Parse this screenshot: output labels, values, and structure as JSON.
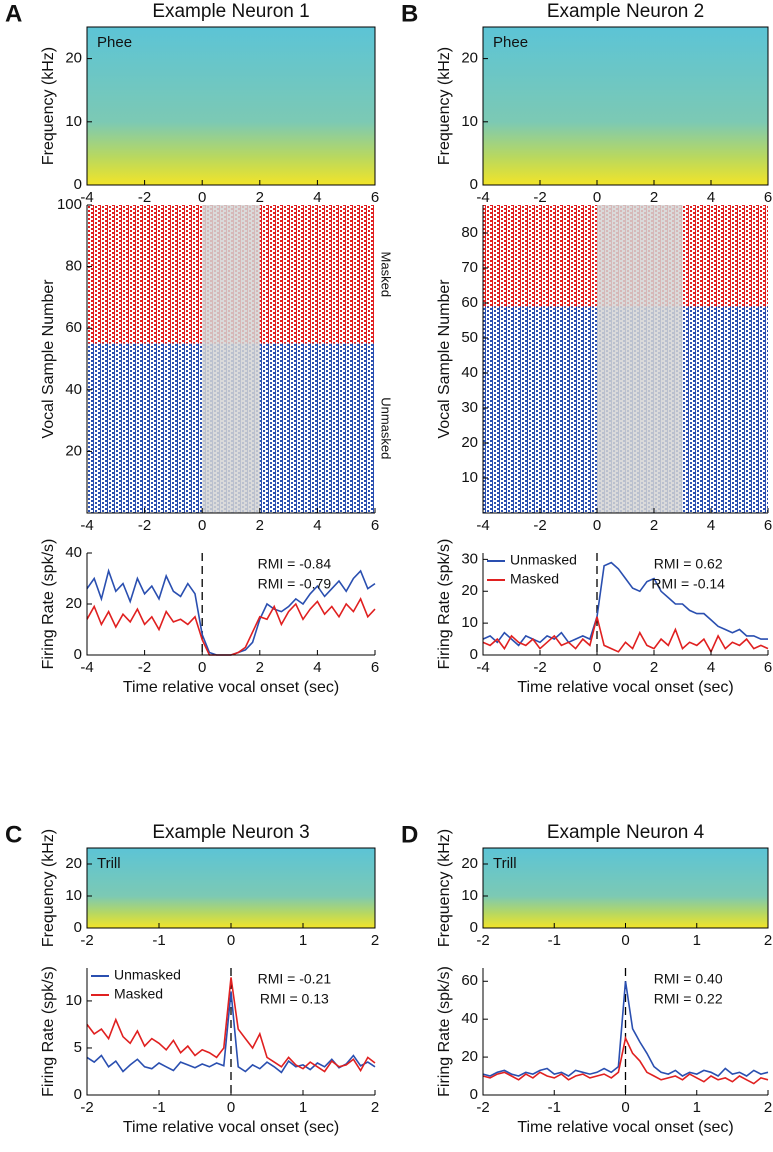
{
  "chart_data": [
    {
      "type": "spectrogram",
      "panel_label": "A",
      "title": "Example Neuron 1",
      "label": "Phee",
      "ylabel": "Frequency (kHz)",
      "xlim": [
        -4,
        6
      ],
      "xticks": [
        -4,
        -2,
        0,
        2,
        4,
        6
      ],
      "ylim": [
        0,
        25
      ],
      "yticks": [
        0,
        10,
        20
      ]
    },
    {
      "type": "raster",
      "ylabel": "Vocal Sample Number",
      "xlim": [
        -4,
        6
      ],
      "xticks": [
        -4,
        -2,
        0,
        2,
        4,
        6
      ],
      "ylim": [
        0,
        100
      ],
      "yticks": [
        20,
        40,
        60,
        80,
        100
      ],
      "vocal_period": [
        0,
        2
      ],
      "series": [
        {
          "name": "Masked",
          "color": "#e02020",
          "rows": [
            55,
            100
          ]
        },
        {
          "name": "Unmasked",
          "color": "#2a4fb0",
          "rows": [
            0,
            55
          ]
        }
      ]
    },
    {
      "type": "line",
      "ylabel": "Firing Rate (spk/s)",
      "xlabel": "Time relative vocal onset (sec)",
      "xlim": [
        -4,
        6
      ],
      "xticks": [
        -4,
        -2,
        0,
        2,
        4,
        6
      ],
      "ylim": [
        0,
        40
      ],
      "yticks": [
        0,
        20,
        40
      ],
      "vline": 0,
      "x": [
        -4,
        -3.75,
        -3.5,
        -3.25,
        -3,
        -2.75,
        -2.5,
        -2.25,
        -2,
        -1.75,
        -1.5,
        -1.25,
        -1,
        -0.75,
        -0.5,
        -0.25,
        0,
        0.25,
        0.5,
        0.75,
        1,
        1.25,
        1.5,
        1.75,
        2,
        2.25,
        2.5,
        2.75,
        3,
        3.25,
        3.5,
        3.75,
        4,
        4.25,
        4.5,
        4.75,
        5,
        5.25,
        5.5,
        5.75,
        6
      ],
      "series": [
        {
          "label": "RMI = -0.84",
          "color": "#2a4fb0",
          "values": [
            26,
            30,
            22,
            33,
            25,
            28,
            21,
            30,
            24,
            27,
            22,
            31,
            25,
            23,
            28,
            24,
            8,
            1,
            0,
            0,
            0,
            1,
            2,
            5,
            14,
            20,
            18,
            17,
            19,
            22,
            20,
            24,
            27,
            23,
            26,
            29,
            25,
            30,
            33,
            26,
            28
          ]
        },
        {
          "label": "RMI = -0.79",
          "color": "#e02020",
          "values": [
            14,
            19,
            12,
            17,
            11,
            16,
            13,
            18,
            12,
            15,
            10,
            17,
            13,
            14,
            12,
            15,
            6,
            0,
            0,
            0,
            0,
            1,
            3,
            9,
            15,
            14,
            19,
            12,
            17,
            20,
            14,
            18,
            21,
            16,
            19,
            15,
            20,
            17,
            22,
            15,
            18
          ]
        }
      ]
    },
    {
      "type": "spectrogram",
      "panel_label": "B",
      "title": "Example Neuron 2",
      "label": "Phee",
      "ylabel": "Frequency (kHz)",
      "xlim": [
        -4,
        6
      ],
      "xticks": [
        -4,
        -2,
        0,
        2,
        4,
        6
      ],
      "ylim": [
        0,
        25
      ],
      "yticks": [
        0,
        10,
        20
      ]
    },
    {
      "type": "raster",
      "ylabel": "Vocal Sample Number",
      "xlim": [
        -4,
        6
      ],
      "xticks": [
        -4,
        -2,
        0,
        2,
        4,
        6
      ],
      "ylim": [
        0,
        88
      ],
      "yticks": [
        10,
        20,
        30,
        40,
        50,
        60,
        70,
        80
      ],
      "vocal_period": [
        0,
        3
      ],
      "series": [
        {
          "color": "#e02020",
          "rows": [
            59,
            88
          ]
        },
        {
          "color": "#2a4fb0",
          "rows": [
            0,
            59
          ]
        }
      ]
    },
    {
      "type": "line",
      "ylabel": "Firing Rate (spk/s)",
      "xlabel": "Time relative vocal onset (sec)",
      "xlim": [
        -4,
        6
      ],
      "xticks": [
        -4,
        -2,
        0,
        2,
        4,
        6
      ],
      "ylim": [
        0,
        32
      ],
      "yticks": [
        0,
        10,
        20,
        30
      ],
      "vline": 0,
      "x": [
        -4,
        -3.75,
        -3.5,
        -3.25,
        -3,
        -2.75,
        -2.5,
        -2.25,
        -2,
        -1.75,
        -1.5,
        -1.25,
        -1,
        -0.75,
        -0.5,
        -0.25,
        0,
        0.25,
        0.5,
        0.75,
        1,
        1.25,
        1.5,
        1.75,
        2,
        2.25,
        2.5,
        2.75,
        3,
        3.25,
        3.5,
        3.75,
        4,
        4.25,
        4.5,
        4.75,
        5,
        5.25,
        5.5,
        5.75,
        6
      ],
      "series": [
        {
          "name": "Unmasked",
          "label": "RMI = 0.62",
          "color": "#2a4fb0",
          "values": [
            5,
            6,
            4,
            7,
            5,
            3,
            6,
            5,
            4,
            6,
            5,
            7,
            4,
            5,
            6,
            5,
            12,
            28,
            29,
            27,
            24,
            21,
            20,
            23,
            24,
            20,
            18,
            16,
            16,
            14,
            13,
            13,
            11,
            9,
            8,
            7,
            8,
            6,
            6,
            5,
            5
          ]
        },
        {
          "name": "Masked",
          "label": "RMI = -0.14",
          "color": "#e02020",
          "values": [
            4,
            3,
            5,
            2,
            6,
            4,
            3,
            5,
            2,
            4,
            6,
            3,
            4,
            2,
            5,
            3,
            12,
            3,
            2,
            1,
            4,
            2,
            7,
            3,
            2,
            5,
            3,
            8,
            2,
            4,
            3,
            5,
            1,
            6,
            2,
            4,
            3,
            5,
            2,
            3,
            2
          ]
        }
      ]
    },
    {
      "type": "spectrogram",
      "panel_label": "C",
      "title": "Example Neuron 3",
      "label": "Trill",
      "ylabel": "Frequency (kHz)",
      "xlim": [
        -2,
        2
      ],
      "xticks": [
        -2,
        -1,
        0,
        1,
        2
      ],
      "ylim": [
        0,
        25
      ],
      "yticks": [
        0,
        10,
        20
      ]
    },
    {
      "type": "line",
      "ylabel": "Firing Rate (spk/s)",
      "xlabel": "Time relative vocal onset (sec)",
      "xlim": [
        -2,
        2
      ],
      "xticks": [
        -2,
        -1,
        0,
        1,
        2
      ],
      "ylim": [
        0,
        13.5
      ],
      "yticks": [
        0,
        5,
        10
      ],
      "vline": 0,
      "x": [
        -2,
        -1.9,
        -1.8,
        -1.7,
        -1.6,
        -1.5,
        -1.4,
        -1.3,
        -1.2,
        -1.1,
        -1,
        -0.9,
        -0.8,
        -0.7,
        -0.6,
        -0.5,
        -0.4,
        -0.3,
        -0.2,
        -0.1,
        0,
        0.1,
        0.2,
        0.3,
        0.4,
        0.5,
        0.6,
        0.7,
        0.8,
        0.9,
        1,
        1.1,
        1.2,
        1.3,
        1.4,
        1.5,
        1.6,
        1.7,
        1.8,
        1.9,
        2
      ],
      "series": [
        {
          "name": "Unmasked",
          "label": "RMI = -0.21",
          "color": "#2a4fb0",
          "values": [
            4,
            3.5,
            4.2,
            3,
            3.6,
            2.5,
            3.2,
            3.8,
            3,
            2.8,
            3.4,
            3,
            2.6,
            3.5,
            3.2,
            2.9,
            3.3,
            3,
            3.4,
            3.1,
            11,
            3,
            2.5,
            3.2,
            2.8,
            3.5,
            3,
            2.4,
            3.6,
            3,
            3.2,
            2.7,
            3.4,
            3,
            3.8,
            2.9,
            3.3,
            4.2,
            3.1,
            3.5,
            3
          ]
        },
        {
          "name": "Masked",
          "label": "RMI = 0.13",
          "color": "#e02020",
          "values": [
            7.5,
            6.5,
            7,
            6,
            8,
            6.2,
            5.5,
            6.8,
            5.2,
            6,
            5.5,
            4.8,
            5.8,
            4.5,
            5.2,
            4.2,
            4.8,
            4.5,
            4,
            5,
            12.5,
            7,
            6,
            5,
            6.5,
            4,
            3.5,
            3,
            4,
            3.2,
            2.8,
            3.5,
            3,
            2.5,
            3.6,
            3,
            3.2,
            3.8,
            2.6,
            4,
            3.4
          ]
        }
      ]
    },
    {
      "type": "spectrogram",
      "panel_label": "D",
      "title": "Example Neuron 4",
      "label": "Trill",
      "ylabel": "Frequency (kHz)",
      "xlim": [
        -2,
        2
      ],
      "xticks": [
        -2,
        -1,
        0,
        1,
        2
      ],
      "ylim": [
        0,
        25
      ],
      "yticks": [
        0,
        10,
        20
      ]
    },
    {
      "type": "line",
      "ylabel": "Firing Rate (spk/s)",
      "xlabel": "Time relative vocal onset (sec)",
      "xlim": [
        -2,
        2
      ],
      "xticks": [
        -2,
        -1,
        0,
        1,
        2
      ],
      "ylim": [
        0,
        67
      ],
      "yticks": [
        0,
        20,
        40,
        60
      ],
      "vline": 0,
      "x": [
        -2,
        -1.9,
        -1.8,
        -1.7,
        -1.6,
        -1.5,
        -1.4,
        -1.3,
        -1.2,
        -1.1,
        -1,
        -0.9,
        -0.8,
        -0.7,
        -0.6,
        -0.5,
        -0.4,
        -0.3,
        -0.2,
        -0.1,
        0,
        0.1,
        0.2,
        0.3,
        0.4,
        0.5,
        0.6,
        0.7,
        0.8,
        0.9,
        1,
        1.1,
        1.2,
        1.3,
        1.4,
        1.5,
        1.6,
        1.7,
        1.8,
        1.9,
        2
      ],
      "series": [
        {
          "label": "RMI = 0.40",
          "color": "#2a4fb0",
          "values": [
            11,
            10,
            12,
            13,
            11,
            10,
            12,
            11,
            13,
            14,
            11,
            12,
            10,
            13,
            12,
            11,
            12,
            14,
            12,
            15,
            60,
            35,
            28,
            22,
            15,
            12,
            11,
            13,
            10,
            12,
            11,
            13,
            12,
            10,
            14,
            11,
            12,
            10,
            13,
            11,
            12
          ]
        },
        {
          "label": "RMI = 0.22",
          "color": "#e02020",
          "values": [
            10,
            9,
            11,
            12,
            10,
            8,
            11,
            9,
            12,
            10,
            9,
            11,
            8,
            10,
            11,
            9,
            10,
            11,
            9,
            12,
            30,
            22,
            18,
            12,
            10,
            8,
            9,
            10,
            8,
            11,
            9,
            7,
            10,
            8,
            9,
            7,
            10,
            8,
            6,
            9,
            8
          ]
        }
      ]
    }
  ]
}
